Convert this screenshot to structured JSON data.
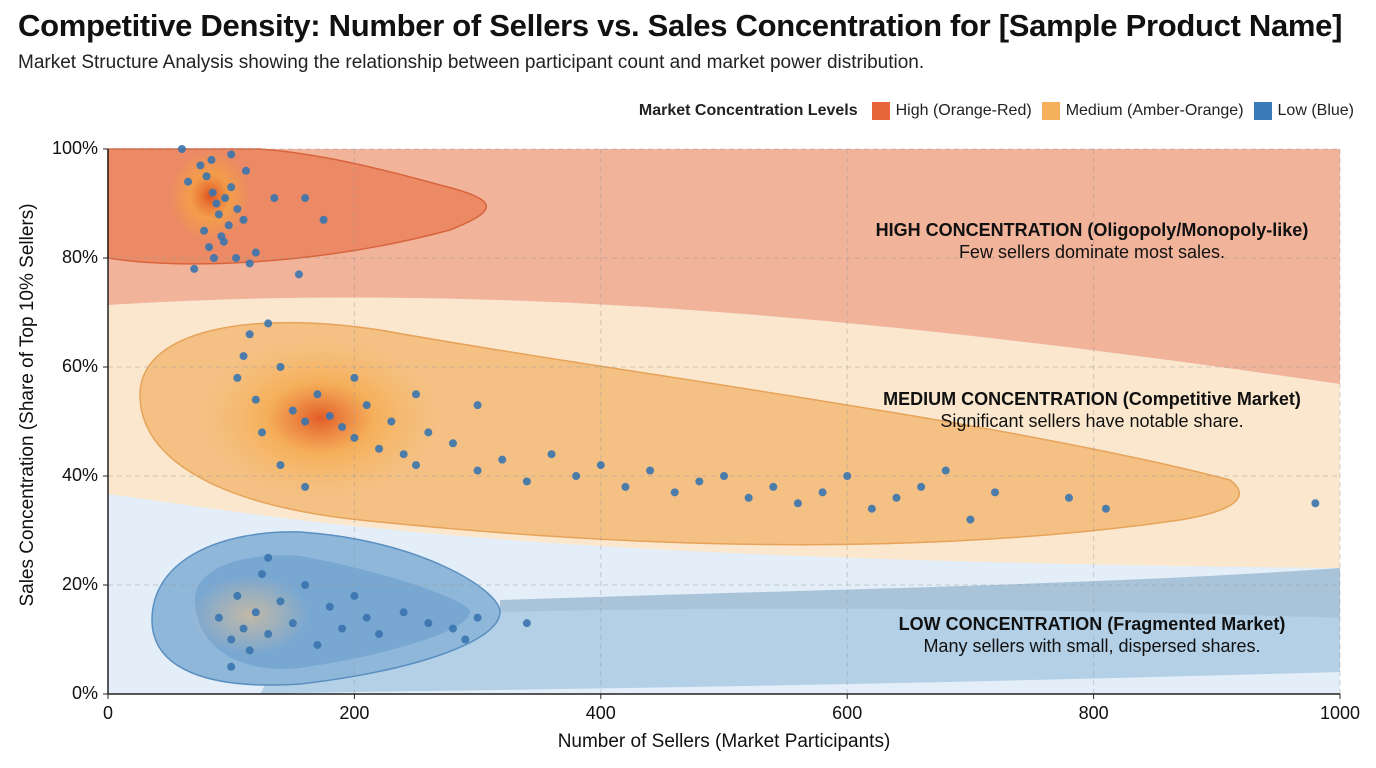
{
  "chart_data": {
    "type": "scatter",
    "title": "Competitive Density: Number of Sellers vs. Sales Concentration for [Sample Product Name]",
    "subtitle": "Market Structure Analysis showing the relationship between participant count and market power distribution.",
    "xlabel": "Number of Sellers (Market Participants)",
    "ylabel": "Sales Concentration (Share of Top 10% Sellers)",
    "legend_title": "Market Concentration Levels",
    "xlim": [
      0,
      1000
    ],
    "ylim": [
      0,
      100
    ],
    "xticks": [
      0,
      200,
      400,
      600,
      800,
      1000
    ],
    "yticks": [
      {
        "value": 0,
        "label": "0%"
      },
      {
        "value": 20,
        "label": "20%"
      },
      {
        "value": 40,
        "label": "40%"
      },
      {
        "value": 60,
        "label": "60%"
      },
      {
        "value": 80,
        "label": "80%"
      },
      {
        "value": 100,
        "label": "100%"
      }
    ],
    "grid": true,
    "marker_color": "#3a74ae",
    "series": [
      {
        "name": "High (Orange-Red)",
        "color": "#e8643a",
        "x": [
          60,
          75,
          80,
          85,
          88,
          90,
          95,
          100,
          105,
          110,
          78,
          92,
          98,
          82,
          86,
          70,
          115,
          120,
          135,
          160,
          175,
          155,
          65,
          100,
          112,
          84,
          94,
          104
        ],
        "values": [
          100,
          97,
          95,
          92,
          90,
          88,
          91,
          93,
          89,
          87,
          85,
          84,
          86,
          82,
          80,
          78,
          79,
          81,
          91,
          91,
          87,
          77,
          94,
          99,
          96,
          98,
          83,
          80
        ]
      },
      {
        "name": "Medium (Amber-Orange)",
        "color": "#f5b05c",
        "x": [
          105,
          110,
          115,
          120,
          125,
          130,
          140,
          150,
          160,
          170,
          180,
          190,
          200,
          210,
          220,
          230,
          240,
          250,
          260,
          280,
          300,
          320,
          340,
          360,
          380,
          400,
          420,
          440,
          460,
          480,
          500,
          520,
          540,
          560,
          580,
          600,
          620,
          640,
          660,
          680,
          700,
          720,
          780,
          810,
          980,
          140,
          160,
          200,
          250,
          300
        ],
        "values": [
          58,
          62,
          66,
          54,
          48,
          68,
          60,
          52,
          50,
          55,
          51,
          49,
          47,
          53,
          45,
          50,
          44,
          42,
          48,
          46,
          41,
          43,
          39,
          44,
          40,
          42,
          38,
          41,
          37,
          39,
          40,
          36,
          38,
          35,
          37,
          40,
          34,
          36,
          38,
          41,
          32,
          37,
          36,
          34,
          35,
          42,
          38,
          58,
          55,
          53
        ]
      },
      {
        "name": "Low (Blue)",
        "color": "#3a7ab8",
        "x": [
          90,
          100,
          105,
          110,
          115,
          120,
          125,
          130,
          140,
          150,
          160,
          170,
          180,
          190,
          200,
          210,
          220,
          240,
          260,
          280,
          290,
          300,
          340,
          100,
          130
        ],
        "values": [
          14,
          10,
          18,
          12,
          8,
          15,
          22,
          11,
          17,
          13,
          20,
          9,
          16,
          12,
          18,
          14,
          11,
          15,
          13,
          12,
          10,
          14,
          13,
          5,
          25
        ]
      }
    ],
    "annotations": [
      {
        "title": "HIGH CONCENTRATION (Oligopoly/Monopoly-like)",
        "text": "Few sellers dominate most sales."
      },
      {
        "title": "MEDIUM CONCENTRATION (Competitive Market)",
        "text": "Significant sellers have notable share."
      },
      {
        "title": "LOW CONCENTRATION (Fragmented Market)",
        "text": "Many sellers with small, dispersed shares."
      }
    ]
  }
}
